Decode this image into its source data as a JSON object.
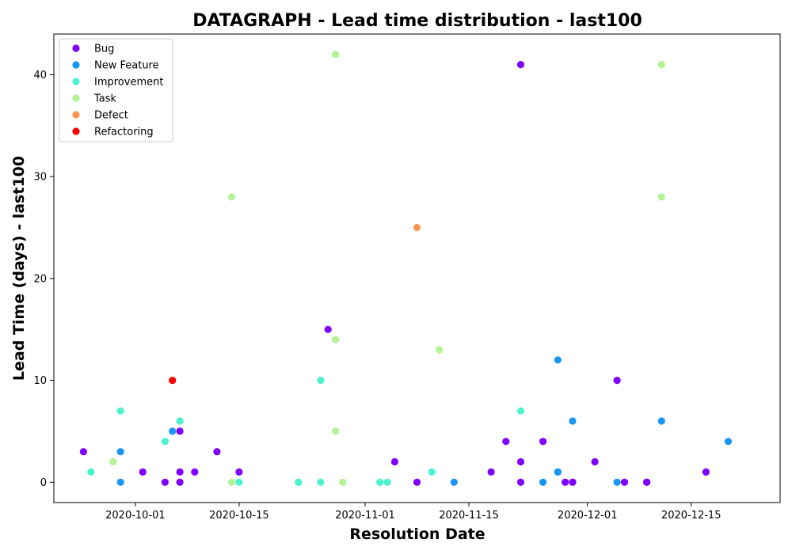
{
  "chart_data": {
    "type": "scatter",
    "title": "DATAGRAPH - Lead time distribution - last100",
    "xlabel": "Resolution Date",
    "ylabel": "Lead Time (days) - last100",
    "x_type": "date",
    "xlim": [
      "2020-09-20",
      "2020-12-27"
    ],
    "ylim": [
      -2,
      44
    ],
    "x_ticks": [
      "2020-10-01",
      "2020-10-15",
      "2020-11-01",
      "2020-11-15",
      "2020-12-01",
      "2020-12-15"
    ],
    "y_ticks": [
      0,
      10,
      20,
      30,
      40
    ],
    "grid": false,
    "legend_position": "top-left",
    "series": [
      {
        "name": "Bug",
        "color": "#8000ff",
        "points": [
          [
            "2020-09-24",
            3
          ],
          [
            "2020-10-02",
            1
          ],
          [
            "2020-10-05",
            0
          ],
          [
            "2020-10-07",
            1
          ],
          [
            "2020-10-07",
            0
          ],
          [
            "2020-10-07",
            5
          ],
          [
            "2020-10-09",
            1
          ],
          [
            "2020-10-12",
            3
          ],
          [
            "2020-10-15",
            1
          ],
          [
            "2020-10-27",
            15
          ],
          [
            "2020-11-05",
            2
          ],
          [
            "2020-11-08",
            0
          ],
          [
            "2020-11-18",
            1
          ],
          [
            "2020-11-20",
            4
          ],
          [
            "2020-11-22",
            41
          ],
          [
            "2020-11-22",
            0
          ],
          [
            "2020-11-22",
            2
          ],
          [
            "2020-11-25",
            4
          ],
          [
            "2020-11-28",
            0
          ],
          [
            "2020-11-29",
            0
          ],
          [
            "2020-11-29",
            0
          ],
          [
            "2020-12-02",
            2
          ],
          [
            "2020-12-05",
            10
          ],
          [
            "2020-12-06",
            0
          ],
          [
            "2020-12-09",
            0
          ],
          [
            "2020-12-09",
            0
          ],
          [
            "2020-12-17",
            1
          ]
        ]
      },
      {
        "name": "New Feature",
        "color": "#1996f3",
        "points": [
          [
            "2020-09-29",
            0
          ],
          [
            "2020-09-29",
            3
          ],
          [
            "2020-10-06",
            5
          ],
          [
            "2020-11-13",
            0
          ],
          [
            "2020-11-25",
            0
          ],
          [
            "2020-11-27",
            12
          ],
          [
            "2020-11-27",
            1
          ],
          [
            "2020-11-27",
            1
          ],
          [
            "2020-11-29",
            6
          ],
          [
            "2020-12-05",
            0
          ],
          [
            "2020-12-11",
            6
          ],
          [
            "2020-12-20",
            4
          ]
        ]
      },
      {
        "name": "Improvement",
        "color": "#4df3ce",
        "points": [
          [
            "2020-09-25",
            1
          ],
          [
            "2020-09-29",
            7
          ],
          [
            "2020-10-05",
            4
          ],
          [
            "2020-10-07",
            6
          ],
          [
            "2020-10-15",
            0
          ],
          [
            "2020-10-23",
            0
          ],
          [
            "2020-10-23",
            0
          ],
          [
            "2020-10-26",
            10
          ],
          [
            "2020-10-26",
            0
          ],
          [
            "2020-11-03",
            0
          ],
          [
            "2020-11-03",
            0
          ],
          [
            "2020-11-04",
            0
          ],
          [
            "2020-11-10",
            1
          ],
          [
            "2020-11-22",
            7
          ]
        ]
      },
      {
        "name": "Task",
        "color": "#b2f396",
        "points": [
          [
            "2020-09-28",
            2
          ],
          [
            "2020-10-14",
            28
          ],
          [
            "2020-10-14",
            0
          ],
          [
            "2020-10-28",
            42
          ],
          [
            "2020-10-28",
            5
          ],
          [
            "2020-10-28",
            14
          ],
          [
            "2020-10-29",
            0
          ],
          [
            "2020-11-11",
            13
          ],
          [
            "2020-12-11",
            41
          ],
          [
            "2020-12-11",
            41
          ],
          [
            "2020-12-11",
            28
          ]
        ]
      },
      {
        "name": "Defect",
        "color": "#ff964f",
        "points": [
          [
            "2020-11-08",
            25
          ]
        ]
      },
      {
        "name": "Refactoring",
        "color": "#ff0000",
        "points": [
          [
            "2020-10-06",
            10
          ]
        ]
      }
    ]
  }
}
